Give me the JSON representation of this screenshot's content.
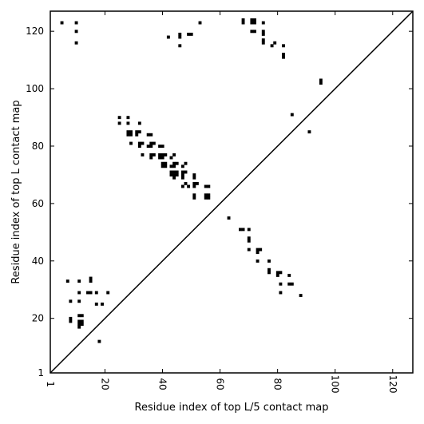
{
  "chart_data": {
    "type": "heatmap",
    "title": "",
    "xlabel": "Residue index of top L/5 contact map",
    "ylabel": "Residue index of top L contact map",
    "xlim": [
      1,
      127
    ],
    "ylim": [
      1,
      127
    ],
    "x_ticks": [
      1,
      20,
      40,
      60,
      80,
      100,
      120
    ],
    "y_ticks": [
      1,
      20,
      40,
      60,
      80,
      100,
      120
    ],
    "x_tick_labels": [
      "1",
      "20",
      "40",
      "60",
      "80",
      "100",
      "120"
    ],
    "y_tick_labels": [
      "1",
      "20",
      "40",
      "60",
      "80",
      "100",
      "120"
    ],
    "diagonal": true,
    "colors": {
      "cell": "#000000",
      "axis": "#000000",
      "background": "#ffffff"
    },
    "upper_triangle_contacts": [
      [
        5,
        123
      ],
      [
        10,
        123
      ],
      [
        10,
        120
      ],
      [
        10,
        116
      ],
      [
        42,
        118
      ],
      [
        46,
        119
      ],
      [
        46,
        118
      ],
      [
        46,
        115
      ],
      [
        49,
        119
      ],
      [
        50,
        119
      ],
      [
        53,
        123
      ],
      [
        68,
        124
      ],
      [
        68,
        123
      ],
      [
        71,
        124
      ],
      [
        72,
        124
      ],
      [
        71,
        123
      ],
      [
        72,
        123
      ],
      [
        71,
        120
      ],
      [
        72,
        120
      ],
      [
        75,
        123
      ],
      [
        75,
        120
      ],
      [
        75,
        119
      ],
      [
        75,
        117
      ],
      [
        75,
        116
      ],
      [
        78,
        115
      ],
      [
        79,
        116
      ],
      [
        82,
        115
      ],
      [
        82,
        112
      ],
      [
        82,
        111
      ],
      [
        95,
        103
      ],
      [
        95,
        102
      ],
      [
        85,
        91
      ],
      [
        91,
        85
      ],
      [
        25,
        90
      ],
      [
        28,
        90
      ],
      [
        25,
        88
      ],
      [
        28,
        88
      ],
      [
        32,
        88
      ],
      [
        28,
        85
      ],
      [
        29,
        85
      ],
      [
        31,
        85
      ],
      [
        32,
        85
      ],
      [
        28,
        84
      ],
      [
        29,
        84
      ],
      [
        31,
        84
      ],
      [
        35,
        84
      ],
      [
        36,
        84
      ],
      [
        29,
        81
      ],
      [
        32,
        81
      ],
      [
        33,
        81
      ],
      [
        36,
        81
      ],
      [
        37,
        81
      ],
      [
        32,
        80
      ],
      [
        35,
        80
      ],
      [
        36,
        80
      ],
      [
        39,
        80
      ],
      [
        40,
        80
      ],
      [
        33,
        77
      ],
      [
        36,
        77
      ],
      [
        37,
        77
      ],
      [
        39,
        77
      ],
      [
        40,
        77
      ],
      [
        41,
        77
      ],
      [
        44,
        77
      ],
      [
        36,
        76
      ],
      [
        39,
        76
      ],
      [
        40,
        76
      ],
      [
        43,
        76
      ],
      [
        40,
        74
      ],
      [
        41,
        74
      ],
      [
        44,
        74
      ],
      [
        45,
        74
      ],
      [
        48,
        74
      ],
      [
        40,
        73
      ],
      [
        41,
        73
      ],
      [
        43,
        73
      ],
      [
        44,
        73
      ],
      [
        47,
        73
      ],
      [
        43,
        71
      ],
      [
        44,
        71
      ],
      [
        45,
        71
      ],
      [
        47,
        71
      ],
      [
        48,
        71
      ],
      [
        43,
        70
      ],
      [
        44,
        70
      ],
      [
        45,
        70
      ],
      [
        47,
        70
      ],
      [
        51,
        70
      ],
      [
        44,
        69
      ],
      [
        47,
        69
      ],
      [
        51,
        69
      ],
      [
        48,
        67
      ],
      [
        51,
        67
      ],
      [
        52,
        67
      ],
      [
        47,
        66
      ],
      [
        49,
        66
      ],
      [
        51,
        66
      ],
      [
        55,
        66
      ],
      [
        56,
        66
      ],
      [
        51,
        63
      ],
      [
        55,
        63
      ],
      [
        56,
        63
      ],
      [
        51,
        62
      ],
      [
        55,
        62
      ],
      [
        56,
        62
      ]
    ],
    "lower_triangle_contacts": [
      [
        63,
        55
      ],
      [
        67,
        51
      ],
      [
        68,
        51
      ],
      [
        70,
        51
      ],
      [
        70,
        48
      ],
      [
        70,
        47
      ],
      [
        70,
        44
      ],
      [
        73,
        44
      ],
      [
        74,
        44
      ],
      [
        73,
        43
      ],
      [
        73,
        40
      ],
      [
        77,
        40
      ],
      [
        77,
        37
      ],
      [
        77,
        36
      ],
      [
        80,
        36
      ],
      [
        81,
        36
      ],
      [
        80,
        35
      ],
      [
        84,
        35
      ],
      [
        81,
        32
      ],
      [
        84,
        32
      ],
      [
        85,
        32
      ],
      [
        81,
        29
      ],
      [
        88,
        28
      ],
      [
        7,
        33
      ],
      [
        11,
        33
      ],
      [
        15,
        34
      ],
      [
        15,
        33
      ],
      [
        11,
        29
      ],
      [
        14,
        29
      ],
      [
        15,
        29
      ],
      [
        17,
        29
      ],
      [
        21,
        29
      ],
      [
        8,
        26
      ],
      [
        11,
        26
      ],
      [
        17,
        25
      ],
      [
        19,
        25
      ],
      [
        8,
        20
      ],
      [
        11,
        21
      ],
      [
        12,
        21
      ],
      [
        8,
        19
      ],
      [
        11,
        19
      ],
      [
        12,
        19
      ],
      [
        11,
        18
      ],
      [
        12,
        18
      ],
      [
        11,
        17
      ],
      [
        18,
        12
      ]
    ]
  }
}
